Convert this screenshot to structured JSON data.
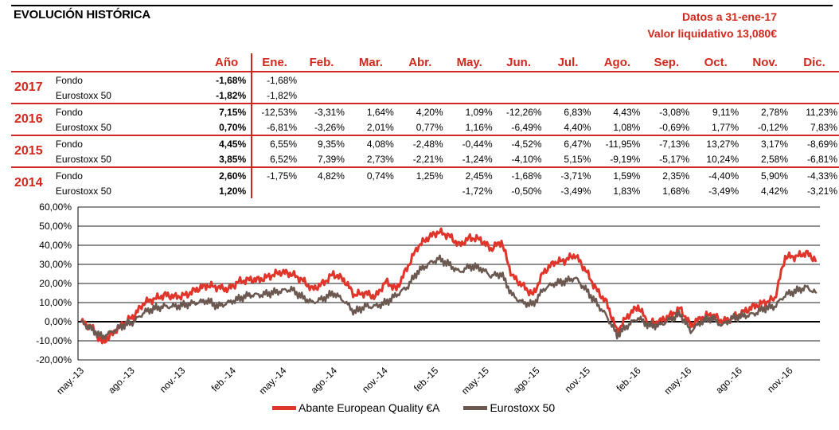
{
  "header": {
    "title": "EVOLUCIÓN HISTÓRICA",
    "date_line": "Datos a 31-ene-17",
    "nav_line": "Valor liquidativo 13,080€"
  },
  "table": {
    "col_year_label": "Año",
    "months": [
      "Ene.",
      "Feb.",
      "Mar.",
      "Abr.",
      "May.",
      "Jun.",
      "Jul.",
      "Ago.",
      "Sep.",
      "Oct.",
      "Nov.",
      "Dic."
    ],
    "years": [
      {
        "year": "2017",
        "rows": [
          {
            "name": "Fondo",
            "total": "-1,68%",
            "m": [
              "-1,68%",
              "",
              "",
              "",
              "",
              "",
              "",
              "",
              "",
              "",
              "",
              ""
            ]
          },
          {
            "name": "Eurostoxx 50",
            "total": "-1,82%",
            "m": [
              "-1,82%",
              "",
              "",
              "",
              "",
              "",
              "",
              "",
              "",
              "",
              "",
              ""
            ]
          }
        ]
      },
      {
        "year": "2016",
        "rows": [
          {
            "name": "Fondo",
            "total": "7,15%",
            "m": [
              "-12,53%",
              "-3,31%",
              "1,64%",
              "4,20%",
              "1,09%",
              "-12,26%",
              "6,83%",
              "4,43%",
              "-3,08%",
              "9,11%",
              "2,78%",
              "11,23%"
            ]
          },
          {
            "name": "Eurostoxx 50",
            "total": "0,70%",
            "m": [
              "-6,81%",
              "-3,26%",
              "2,01%",
              "0,77%",
              "1,16%",
              "-6,49%",
              "4,40%",
              "1,08%",
              "-0,69%",
              "1,77%",
              "-0,12%",
              "7,83%"
            ]
          }
        ]
      },
      {
        "year": "2015",
        "rows": [
          {
            "name": "Fondo",
            "total": "4,45%",
            "m": [
              "6,55%",
              "9,35%",
              "4,08%",
              "-2,48%",
              "-0,44%",
              "-4,52%",
              "6,47%",
              "-11,95%",
              "-7,13%",
              "13,27%",
              "3,17%",
              "-8,69%"
            ]
          },
          {
            "name": "Eurostoxx 50",
            "total": "3,85%",
            "m": [
              "6,52%",
              "7,39%",
              "2,73%",
              "-2,21%",
              "-1,24%",
              "-4,10%",
              "5,15%",
              "-9,19%",
              "-5,17%",
              "10,24%",
              "2,58%",
              "-6,81%"
            ]
          }
        ]
      },
      {
        "year": "2014",
        "rows": [
          {
            "name": "Fondo",
            "total": "2,60%",
            "m": [
              "-1,75%",
              "4,82%",
              "0,74%",
              "1,25%",
              "2,45%",
              "-1,68%",
              "-3,71%",
              "1,59%",
              "2,35%",
              "-4,40%",
              "5,90%",
              "-4,33%"
            ]
          },
          {
            "name": "Eurostoxx 50",
            "total": "1,20%",
            "m": [
              "",
              "",
              "",
              "",
              "-1,72%",
              "-0,50%",
              "-3,49%",
              "1,83%",
              "1,68%",
              "-3,49%",
              "4,42%",
              "-3,21%"
            ]
          }
        ]
      }
    ]
  },
  "chart_data": {
    "type": "line",
    "ylim": [
      -20,
      60
    ],
    "yticks": [
      "-20,00%",
      "-10,00%",
      "0,00%",
      "10,00%",
      "20,00%",
      "30,00%",
      "40,00%",
      "50,00%",
      "60,00%"
    ],
    "ytick_values": [
      -20,
      -10,
      0,
      10,
      20,
      30,
      40,
      50,
      60
    ],
    "xticks": [
      "may.-13",
      "ago.-13",
      "nov.-13",
      "feb.-14",
      "may.-14",
      "ago.-14",
      "nov.-14",
      "feb.-15",
      "may.-15",
      "ago.-15",
      "nov.-15",
      "feb.-16",
      "may.-16",
      "ago.-16",
      "nov.-16"
    ],
    "grid": true,
    "legend_position": "bottom",
    "series": [
      {
        "name": "Abante European Quality €A",
        "color": "#e0352a",
        "values": [
          0,
          -3,
          -11,
          -6,
          -1,
          3,
          10,
          12,
          14,
          13,
          14,
          17,
          19,
          18,
          17,
          21,
          22,
          22,
          24,
          26,
          25,
          22,
          17,
          20,
          25,
          22,
          14,
          15,
          13,
          21,
          17,
          28,
          39,
          44,
          47,
          45,
          40,
          44,
          43,
          38,
          42,
          24,
          19,
          14,
          26,
          31,
          32,
          35,
          27,
          17,
          10,
          -5,
          3,
          8,
          -1,
          0,
          3,
          7,
          -2,
          2,
          4,
          0,
          2,
          5,
          8,
          10,
          12,
          34,
          34,
          36,
          32
        ]
      },
      {
        "name": "Eurostoxx 50",
        "color": "#6b5850",
        "values": [
          0,
          -4,
          -8,
          -5,
          -2,
          0,
          5,
          7,
          8,
          8,
          9,
          10,
          11,
          8,
          10,
          12,
          14,
          14,
          15,
          16,
          17,
          13,
          10,
          12,
          15,
          11,
          5,
          8,
          8,
          10,
          14,
          18,
          26,
          30,
          33,
          30,
          26,
          29,
          28,
          24,
          25,
          14,
          10,
          9,
          17,
          20,
          21,
          23,
          17,
          10,
          3,
          -7,
          -2,
          2,
          -2,
          -2,
          1,
          4,
          -5,
          0,
          2,
          -2,
          2,
          3,
          4,
          7,
          8,
          14,
          16,
          18,
          15
        ]
      }
    ]
  }
}
